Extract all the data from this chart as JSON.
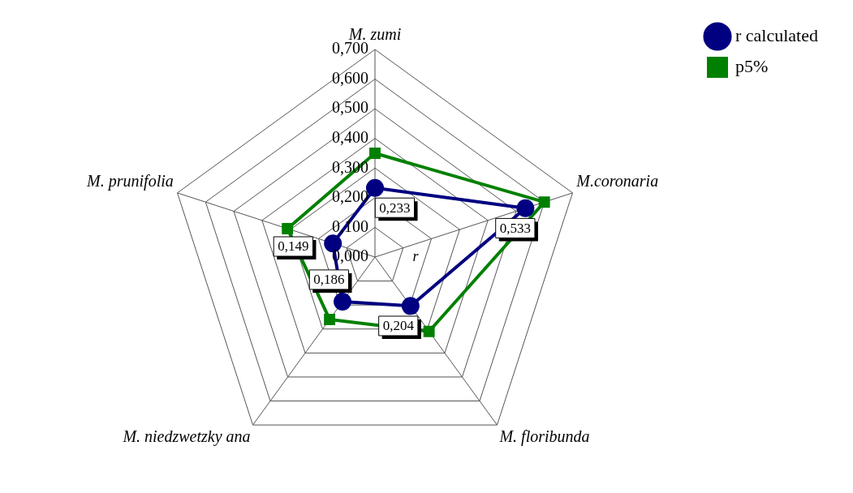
{
  "chart_data": {
    "type": "radar",
    "categories": [
      "M. zumi",
      "M.coronaria",
      "M. floribunda",
      "M. niedzwetzky ana",
      "M. prunifolia"
    ],
    "series": [
      {
        "name": "r calculated",
        "color": "#000080",
        "values": [
          0.233,
          0.533,
          0.204,
          0.186,
          0.149
        ],
        "marker": "circle",
        "value_labels": [
          "0,233",
          "0,533",
          "0,204",
          "0,186",
          "0,149"
        ]
      },
      {
        "name": "p5%",
        "color": "#008000",
        "values": [
          0.35,
          0.6,
          0.31,
          0.26,
          0.31
        ],
        "marker": "square"
      }
    ],
    "ylim": [
      0,
      0.7
    ],
    "yticks": [
      {
        "value": 0,
        "label": "0,000"
      },
      {
        "value": 0.1,
        "label": "0,100"
      },
      {
        "value": 0.2,
        "label": "0,200"
      },
      {
        "value": 0.3,
        "label": "0,300"
      },
      {
        "value": 0.4,
        "label": "0,400"
      },
      {
        "value": 0.5,
        "label": "0,500"
      },
      {
        "value": 0.6,
        "label": "0,600"
      },
      {
        "value": 0.7,
        "label": "0,700"
      }
    ],
    "grid": true,
    "legend": "top right",
    "annotations": [
      "r"
    ]
  }
}
